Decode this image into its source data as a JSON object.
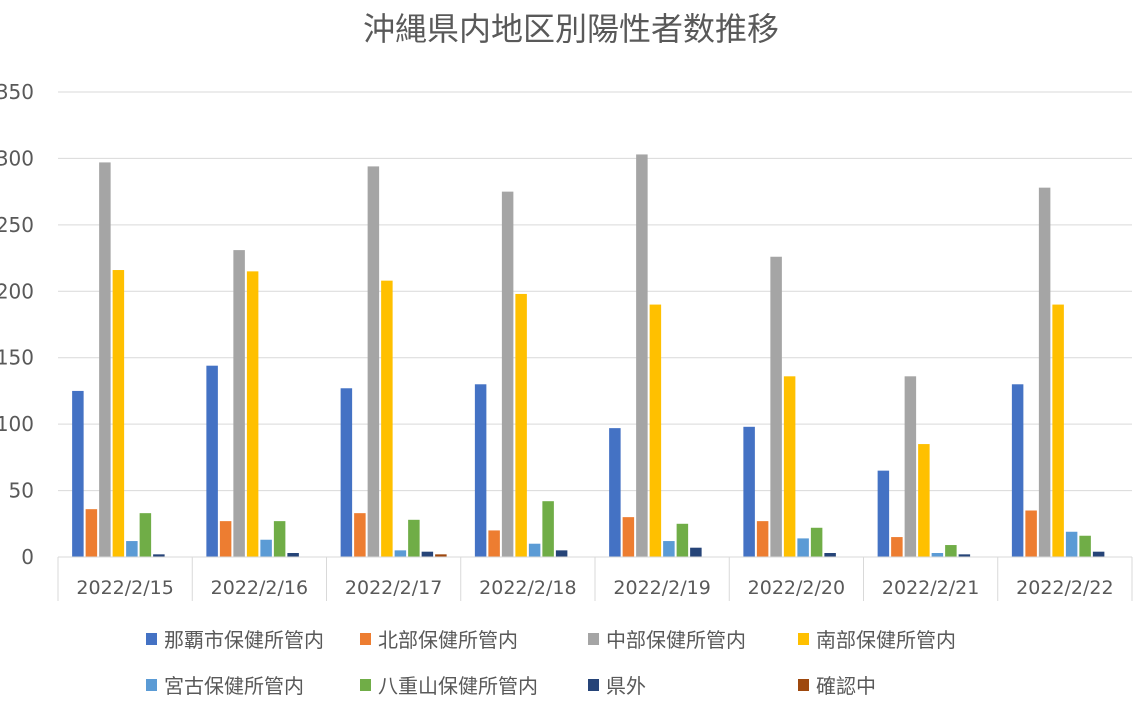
{
  "chart_data": {
    "type": "bar",
    "title": "沖縄県内地区別陽性者数推移",
    "categories": [
      "2022/2/15",
      "2022/2/16",
      "2022/2/17",
      "2022/2/18",
      "2022/2/19",
      "2022/2/20",
      "2022/2/21",
      "2022/2/22"
    ],
    "ylim": [
      0,
      350
    ],
    "yticks": [
      0,
      50,
      100,
      150,
      200,
      250,
      300,
      350
    ],
    "grid": true,
    "legend_position": "bottom",
    "series": [
      {
        "name": "那覇市保健所管内",
        "color": "#4472c4",
        "values": [
          125,
          144,
          127,
          130,
          97,
          98,
          65,
          130
        ]
      },
      {
        "name": "北部保健所管内",
        "color": "#ed7d31",
        "values": [
          36,
          27,
          33,
          20,
          30,
          27,
          15,
          35
        ]
      },
      {
        "name": "中部保健所管内",
        "color": "#a5a5a5",
        "values": [
          297,
          231,
          294,
          275,
          303,
          226,
          136,
          278
        ]
      },
      {
        "name": "南部保健所管内",
        "color": "#ffc000",
        "values": [
          216,
          215,
          208,
          198,
          190,
          136,
          85,
          190
        ]
      },
      {
        "name": "宮古保健所管内",
        "color": "#5b9bd5",
        "values": [
          12,
          13,
          5,
          10,
          12,
          14,
          3,
          19
        ]
      },
      {
        "name": "八重山保健所管内",
        "color": "#70ad47",
        "values": [
          33,
          27,
          28,
          42,
          25,
          22,
          9,
          16
        ]
      },
      {
        "name": "県外",
        "color": "#264478",
        "values": [
          2,
          3,
          4,
          5,
          7,
          3,
          2,
          4
        ]
      },
      {
        "name": "確認中",
        "color": "#9e480e",
        "values": [
          0,
          0,
          2,
          0,
          0,
          0,
          0,
          0
        ]
      }
    ]
  }
}
